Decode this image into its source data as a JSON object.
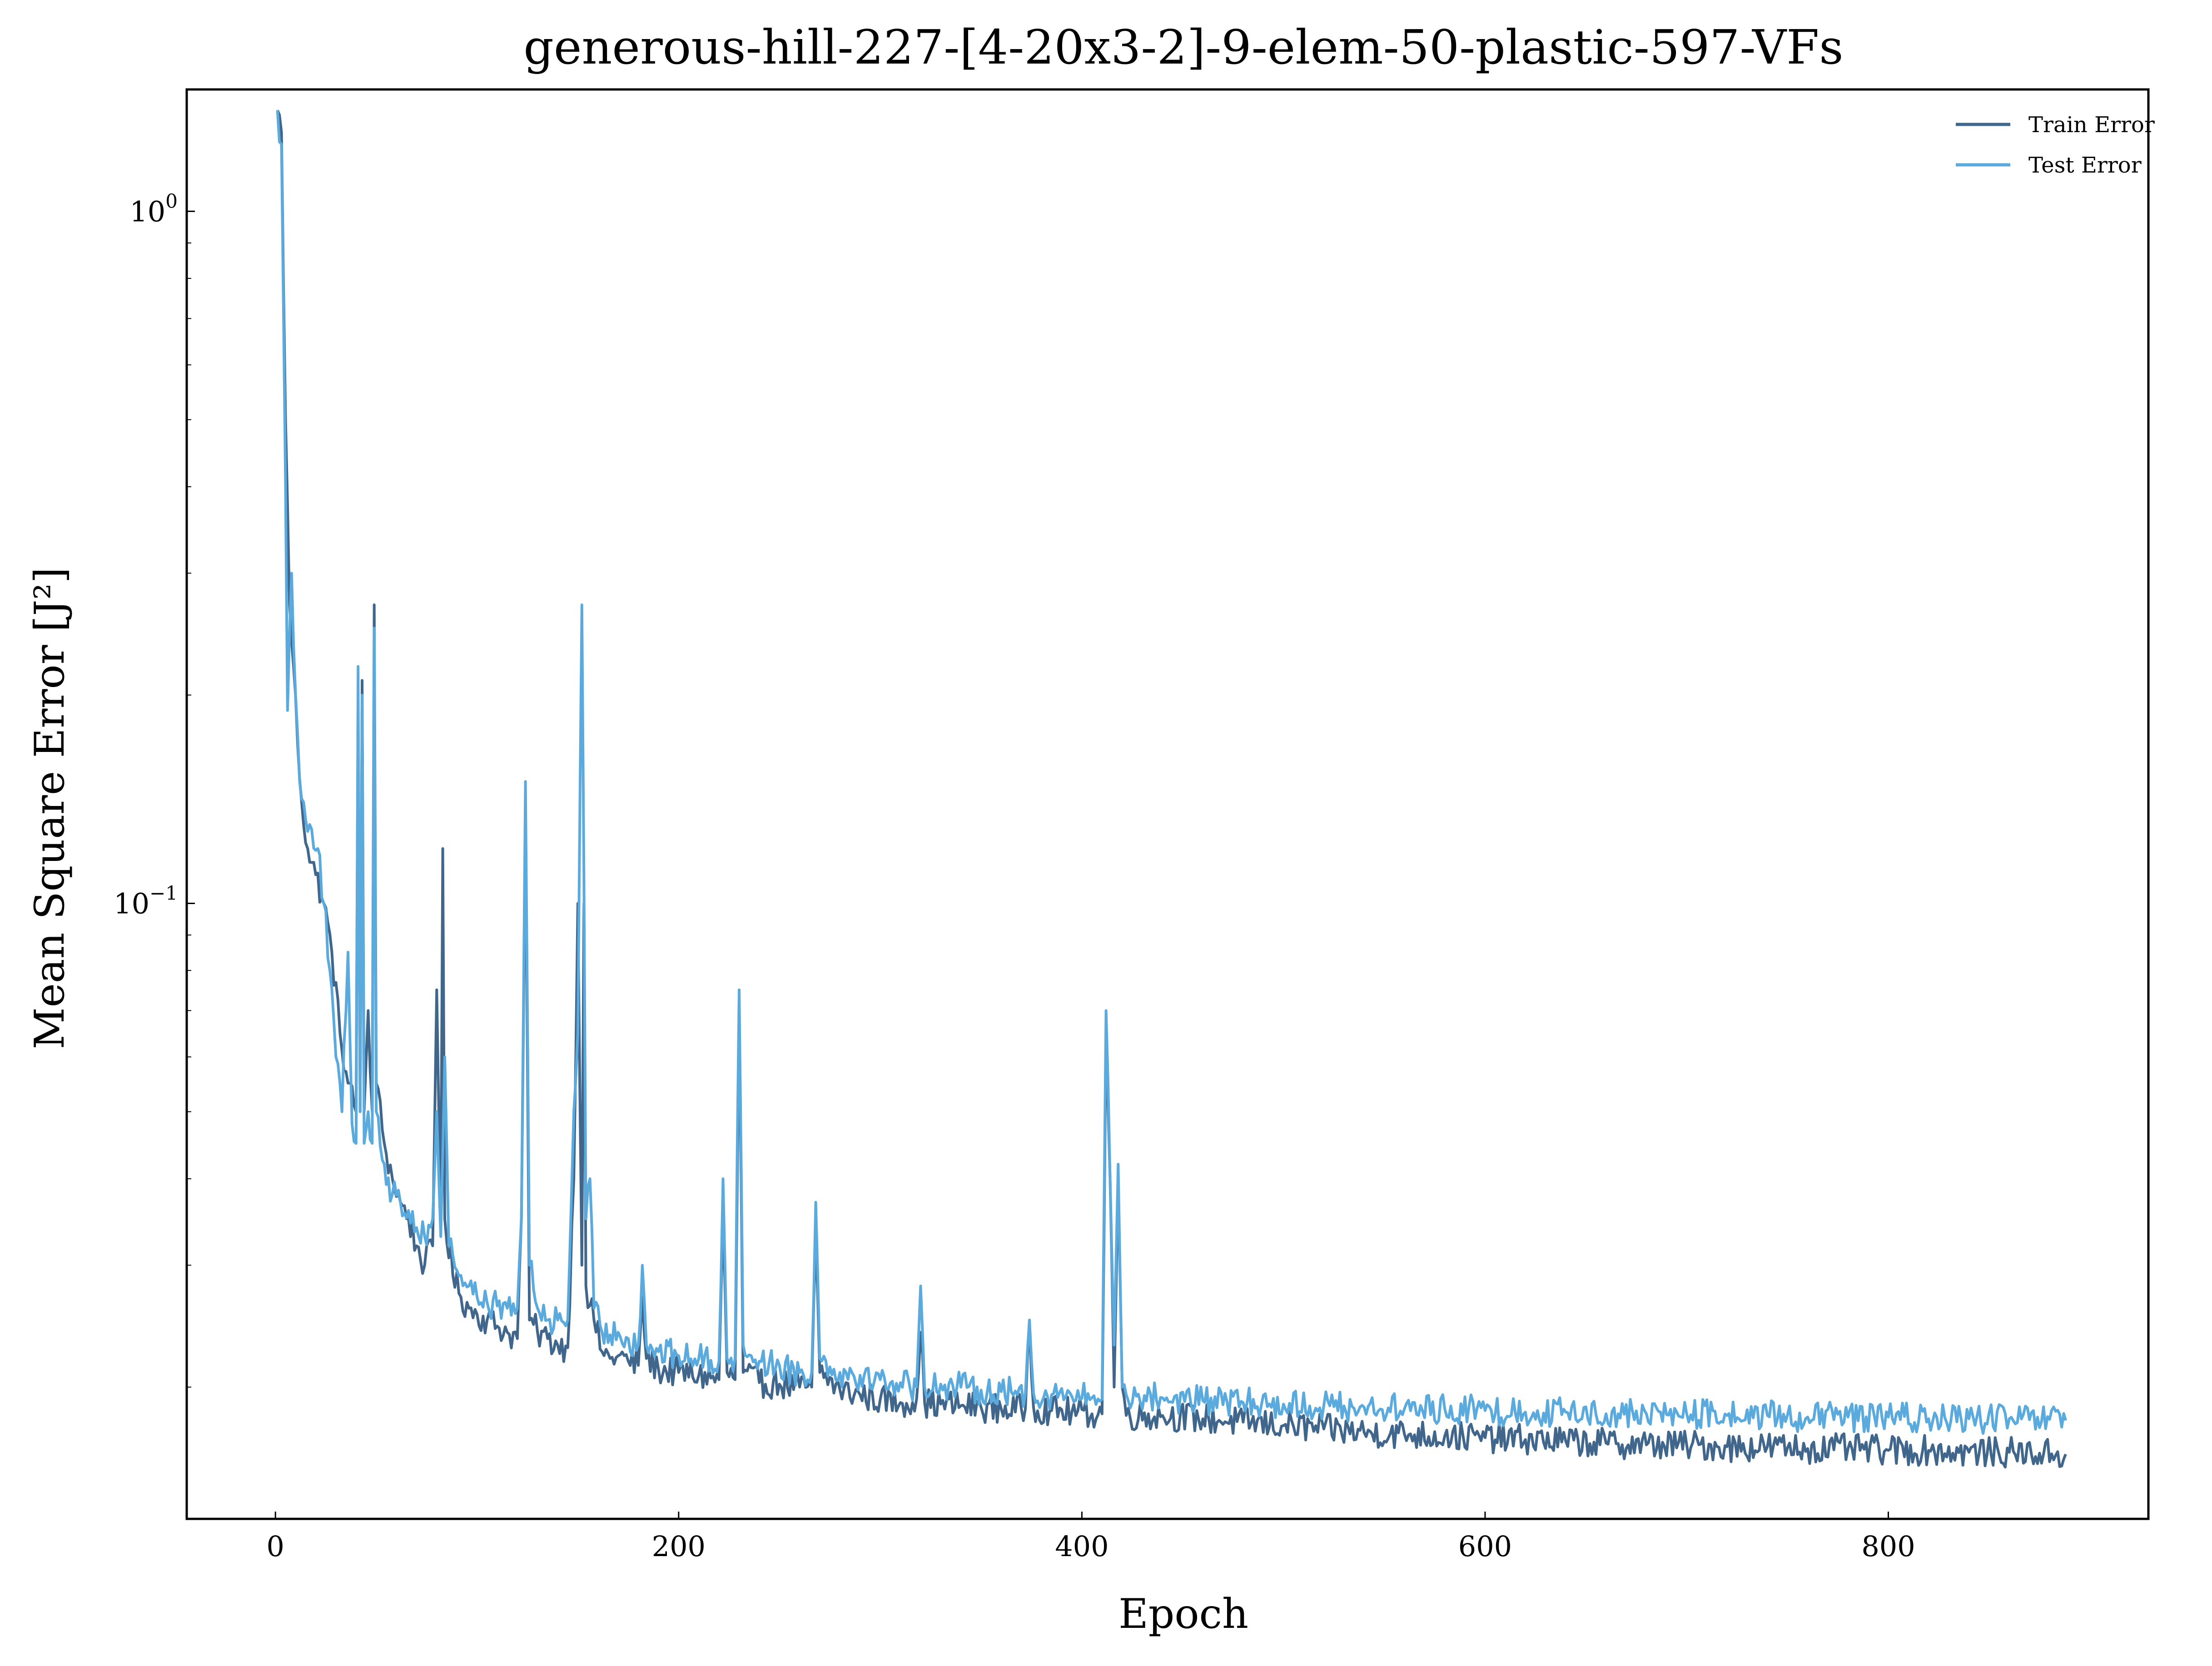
{
  "chart_data": {
    "type": "line",
    "title": "generous-hill-227-[4-20x3-2]-9-elem-50-plastic-597-VFs",
    "xlabel": "Epoch",
    "ylabel": "Mean Square Error [J²]",
    "xlim": [
      -44,
      929
    ],
    "ylim": [
      0.0129,
      1.5
    ],
    "yscale": "log",
    "grid": false,
    "legend_position": "top-right",
    "x_ticks": [
      0,
      200,
      400,
      600,
      800
    ],
    "y_ticks": [
      {
        "value": 1.0,
        "base": "10",
        "exp": "0"
      },
      {
        "value": 0.1,
        "base": "10",
        "exp": "−1"
      }
    ],
    "n_epochs": 888,
    "series": [
      {
        "name": "Train Error",
        "color": "#40668c",
        "points": [
          [
            1,
            1.4
          ],
          [
            3,
            1.3
          ],
          [
            5,
            0.5
          ],
          [
            7,
            0.27
          ],
          [
            9,
            0.22
          ],
          [
            11,
            0.17
          ],
          [
            13,
            0.14
          ],
          [
            16,
            0.12
          ],
          [
            20,
            0.11
          ],
          [
            24,
            0.1
          ],
          [
            28,
            0.085
          ],
          [
            32,
            0.065
          ],
          [
            36,
            0.055
          ],
          [
            40,
            0.05
          ],
          [
            41,
            0.2
          ],
          [
            42,
            0.05
          ],
          [
            43,
            0.21
          ],
          [
            44,
            0.05
          ],
          [
            46,
            0.07
          ],
          [
            48,
            0.05
          ],
          [
            49,
            0.27
          ],
          [
            50,
            0.055
          ],
          [
            54,
            0.045
          ],
          [
            58,
            0.04
          ],
          [
            62,
            0.037
          ],
          [
            66,
            0.035
          ],
          [
            70,
            0.032
          ],
          [
            74,
            0.03
          ],
          [
            78,
            0.032
          ],
          [
            80,
            0.075
          ],
          [
            82,
            0.035
          ],
          [
            83,
            0.12
          ],
          [
            84,
            0.035
          ],
          [
            88,
            0.029
          ],
          [
            92,
            0.027
          ],
          [
            96,
            0.026
          ],
          [
            100,
            0.0255
          ],
          [
            105,
            0.025
          ],
          [
            110,
            0.0245
          ],
          [
            115,
            0.024
          ],
          [
            120,
            0.0235
          ],
          [
            122,
            0.035
          ],
          [
            124,
            0.13
          ],
          [
            126,
            0.025
          ],
          [
            130,
            0.024
          ],
          [
            135,
            0.0235
          ],
          [
            140,
            0.023
          ],
          [
            145,
            0.0228
          ],
          [
            148,
            0.04
          ],
          [
            150,
            0.1
          ],
          [
            152,
            0.03
          ],
          [
            153,
            0.1
          ],
          [
            154,
            0.028
          ],
          [
            158,
            0.025
          ],
          [
            162,
            0.0225
          ],
          [
            166,
            0.022
          ],
          [
            170,
            0.0222
          ],
          [
            175,
            0.0218
          ],
          [
            180,
            0.0215
          ],
          [
            182,
            0.027
          ],
          [
            184,
            0.022
          ],
          [
            190,
            0.0212
          ],
          [
            200,
            0.021
          ],
          [
            210,
            0.0208
          ],
          [
            220,
            0.0205
          ],
          [
            222,
            0.035
          ],
          [
            224,
            0.021
          ],
          [
            228,
            0.0205
          ],
          [
            230,
            0.07
          ],
          [
            232,
            0.021
          ],
          [
            240,
            0.0203
          ],
          [
            250,
            0.0202
          ],
          [
            260,
            0.02
          ],
          [
            266,
            0.02
          ],
          [
            268,
            0.033
          ],
          [
            270,
            0.021
          ],
          [
            280,
            0.0198
          ],
          [
            290,
            0.0195
          ],
          [
            300,
            0.0192
          ],
          [
            310,
            0.019
          ],
          [
            318,
            0.0192
          ],
          [
            320,
            0.024
          ],
          [
            322,
            0.019
          ],
          [
            330,
            0.0189
          ],
          [
            340,
            0.0188
          ],
          [
            350,
            0.0187
          ],
          [
            360,
            0.0186
          ],
          [
            372,
            0.0186
          ],
          [
            374,
            0.025
          ],
          [
            376,
            0.0187
          ],
          [
            385,
            0.0185
          ],
          [
            395,
            0.0184
          ],
          [
            405,
            0.0183
          ],
          [
            410,
            0.0183
          ],
          [
            412,
            0.065
          ],
          [
            414,
            0.04
          ],
          [
            416,
            0.02
          ],
          [
            418,
            0.04
          ],
          [
            420,
            0.02
          ],
          [
            422,
            0.0182
          ],
          [
            440,
            0.0182
          ],
          [
            460,
            0.018
          ],
          [
            480,
            0.0178
          ],
          [
            500,
            0.0176
          ],
          [
            520,
            0.0174
          ],
          [
            540,
            0.0172
          ],
          [
            560,
            0.0171
          ],
          [
            580,
            0.017
          ],
          [
            600,
            0.0169
          ],
          [
            620,
            0.0168
          ],
          [
            640,
            0.0167
          ],
          [
            660,
            0.0166
          ],
          [
            680,
            0.0165
          ],
          [
            700,
            0.0165
          ],
          [
            720,
            0.0164
          ],
          [
            740,
            0.0164
          ],
          [
            760,
            0.0163
          ],
          [
            780,
            0.0163
          ],
          [
            800,
            0.0162
          ],
          [
            820,
            0.0162
          ],
          [
            840,
            0.0161
          ],
          [
            860,
            0.0161
          ],
          [
            888,
            0.016
          ]
        ]
      },
      {
        "name": "Test Error",
        "color": "#5aaade",
        "points": [
          [
            1,
            1.4
          ],
          [
            3,
            1.25
          ],
          [
            5,
            0.4
          ],
          [
            6,
            0.19
          ],
          [
            8,
            0.3
          ],
          [
            10,
            0.2
          ],
          [
            12,
            0.15
          ],
          [
            14,
            0.14
          ],
          [
            17,
            0.13
          ],
          [
            21,
            0.12
          ],
          [
            24,
            0.1
          ],
          [
            27,
            0.08
          ],
          [
            30,
            0.06
          ],
          [
            33,
            0.05
          ],
          [
            36,
            0.085
          ],
          [
            38,
            0.048
          ],
          [
            40,
            0.045
          ],
          [
            41,
            0.22
          ],
          [
            42,
            0.05
          ],
          [
            43,
            0.2
          ],
          [
            44,
            0.045
          ],
          [
            46,
            0.05
          ],
          [
            48,
            0.045
          ],
          [
            49,
            0.25
          ],
          [
            50,
            0.05
          ],
          [
            54,
            0.042
          ],
          [
            58,
            0.038
          ],
          [
            62,
            0.037
          ],
          [
            66,
            0.036
          ],
          [
            70,
            0.034
          ],
          [
            74,
            0.033
          ],
          [
            78,
            0.035
          ],
          [
            80,
            0.05
          ],
          [
            82,
            0.033
          ],
          [
            84,
            0.06
          ],
          [
            86,
            0.032
          ],
          [
            88,
            0.031
          ],
          [
            92,
            0.029
          ],
          [
            96,
            0.028
          ],
          [
            100,
            0.027
          ],
          [
            105,
            0.0265
          ],
          [
            110,
            0.0262
          ],
          [
            115,
            0.026
          ],
          [
            120,
            0.026
          ],
          [
            122,
            0.035
          ],
          [
            124,
            0.15
          ],
          [
            126,
            0.03
          ],
          [
            130,
            0.026
          ],
          [
            135,
            0.025
          ],
          [
            140,
            0.025
          ],
          [
            145,
            0.025
          ],
          [
            148,
            0.05
          ],
          [
            150,
            0.065
          ],
          [
            152,
            0.27
          ],
          [
            153,
            0.11
          ],
          [
            154,
            0.035
          ],
          [
            156,
            0.04
          ],
          [
            158,
            0.026
          ],
          [
            162,
            0.024
          ],
          [
            166,
            0.0238
          ],
          [
            170,
            0.024
          ],
          [
            175,
            0.0235
          ],
          [
            180,
            0.023
          ],
          [
            182,
            0.03
          ],
          [
            184,
            0.023
          ],
          [
            190,
            0.0225
          ],
          [
            200,
            0.0222
          ],
          [
            210,
            0.022
          ],
          [
            220,
            0.0218
          ],
          [
            222,
            0.04
          ],
          [
            224,
            0.022
          ],
          [
            228,
            0.022
          ],
          [
            230,
            0.075
          ],
          [
            232,
            0.023
          ],
          [
            240,
            0.0218
          ],
          [
            250,
            0.0215
          ],
          [
            260,
            0.021
          ],
          [
            266,
            0.021
          ],
          [
            268,
            0.037
          ],
          [
            270,
            0.022
          ],
          [
            280,
            0.021
          ],
          [
            290,
            0.0208
          ],
          [
            300,
            0.0205
          ],
          [
            310,
            0.0203
          ],
          [
            318,
            0.02
          ],
          [
            320,
            0.028
          ],
          [
            322,
            0.02
          ],
          [
            330,
            0.0202
          ],
          [
            340,
            0.02
          ],
          [
            350,
            0.0198
          ],
          [
            360,
            0.0197
          ],
          [
            372,
            0.0196
          ],
          [
            374,
            0.025
          ],
          [
            376,
            0.0196
          ],
          [
            385,
            0.0195
          ],
          [
            395,
            0.0194
          ],
          [
            405,
            0.0193
          ],
          [
            410,
            0.0192
          ],
          [
            412,
            0.07
          ],
          [
            414,
            0.04
          ],
          [
            416,
            0.023
          ],
          [
            418,
            0.042
          ],
          [
            420,
            0.02
          ],
          [
            422,
            0.0195
          ],
          [
            440,
            0.0193
          ],
          [
            460,
            0.0191
          ],
          [
            480,
            0.019
          ],
          [
            500,
            0.0189
          ],
          [
            520,
            0.0188
          ],
          [
            540,
            0.0187
          ],
          [
            560,
            0.0186
          ],
          [
            580,
            0.0186
          ],
          [
            600,
            0.0185
          ],
          [
            620,
            0.0184
          ],
          [
            640,
            0.0184
          ],
          [
            660,
            0.0183
          ],
          [
            680,
            0.0183
          ],
          [
            700,
            0.0183
          ],
          [
            720,
            0.0182
          ],
          [
            740,
            0.0182
          ],
          [
            760,
            0.0181
          ],
          [
            780,
            0.0181
          ],
          [
            800,
            0.0181
          ],
          [
            820,
            0.018
          ],
          [
            840,
            0.018
          ],
          [
            860,
            0.018
          ],
          [
            888,
            0.0179
          ]
        ]
      }
    ]
  }
}
